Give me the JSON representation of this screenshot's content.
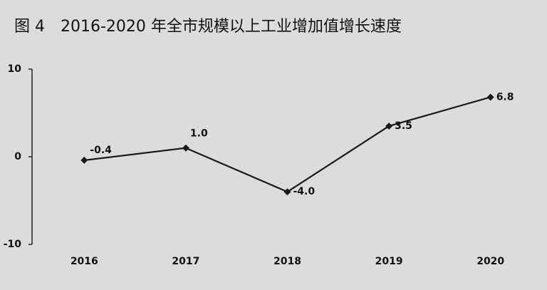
{
  "chart_data": {
    "type": "line",
    "title": "图 4　2016-2020 年全市规模以上工业增加值增长速度",
    "categories": [
      "2016",
      "2017",
      "2018",
      "2019",
      "2020"
    ],
    "values": [
      -0.4,
      1.0,
      -4.0,
      3.5,
      6.8
    ],
    "value_labels": [
      "-0.4",
      "1.0",
      "-4.0",
      "3.5",
      "6.8"
    ],
    "color": "#1a1a1a",
    "ylim": [
      -10,
      10
    ],
    "yticks": [
      -10,
      0,
      10
    ],
    "grid": false
  }
}
